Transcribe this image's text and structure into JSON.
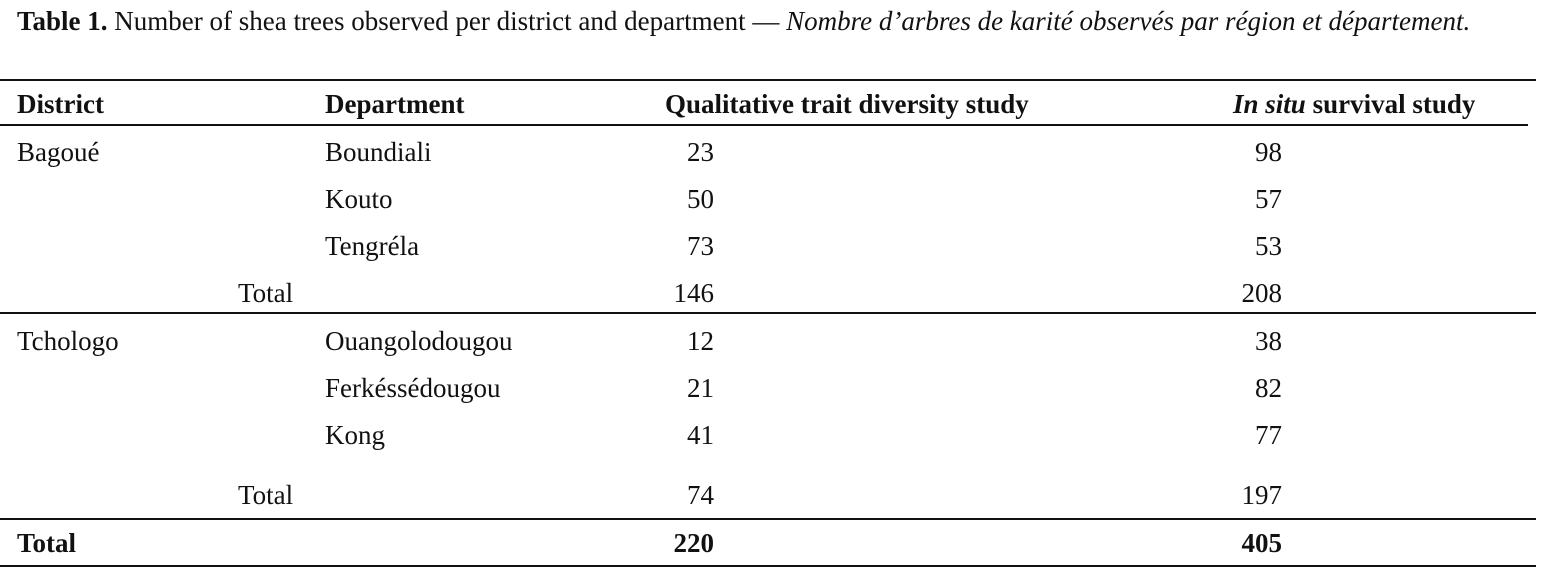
{
  "caption": {
    "label": "Table 1.",
    "text": "Number of shea trees observed per district and department —",
    "french": "Nombre d’arbres de karité observés par région et département."
  },
  "table": {
    "header": {
      "district": "District",
      "department": "Department",
      "qualitative": "Qualitative trait diversity study",
      "in_situ_italic": "In situ",
      "in_situ": "survival study"
    },
    "groups": [
      {
        "district": "Bagoué",
        "rows": [
          {
            "department": "Boundiali",
            "qualitative": 23,
            "in_situ": 98
          },
          {
            "department": "Kouto",
            "qualitative": 50,
            "in_situ": 57
          },
          {
            "department": "Tengréla",
            "qualitative": 73,
            "in_situ": 53
          }
        ],
        "total": {
          "label": "Total",
          "qualitative": 146,
          "in_situ": 208
        }
      },
      {
        "district": "Tchologo",
        "rows": [
          {
            "department": "Ouangolodougou",
            "qualitative": 12,
            "in_situ": 38
          },
          {
            "department": "Ferkéssédougou",
            "qualitative": 21,
            "in_situ": 82
          },
          {
            "department": "Kong",
            "qualitative": 41,
            "in_situ": 77
          }
        ],
        "total": {
          "label": "Total",
          "qualitative": 74,
          "in_situ": 197
        }
      }
    ],
    "grand_total": {
      "label": "Total",
      "qualitative": 220,
      "in_situ": 405
    }
  }
}
